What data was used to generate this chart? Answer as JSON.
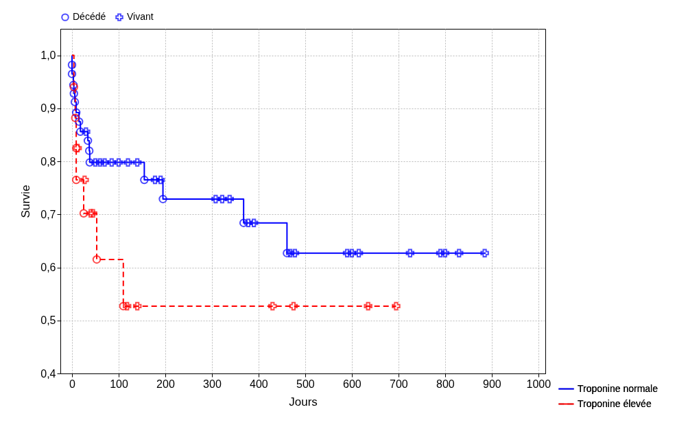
{
  "chart_data": {
    "type": "step",
    "xlabel": "Jours",
    "ylabel": "Survie",
    "grid": true,
    "legend": "bottom right",
    "xlim": [
      -25,
      1015
    ],
    "xticks": [
      0,
      100,
      200,
      300,
      400,
      500,
      600,
      700,
      800,
      900,
      1000
    ],
    "ylim": [
      0.4,
      1.05
    ],
    "yticks": [
      {
        "value": 0.4,
        "label": "0,4"
      },
      {
        "value": 0.5,
        "label": "0,5"
      },
      {
        "value": 0.6,
        "label": "0,6"
      },
      {
        "value": 0.7,
        "label": "0,7"
      },
      {
        "value": 0.8,
        "label": "0,8"
      },
      {
        "value": 0.9,
        "label": "0,9"
      },
      {
        "value": 1.0,
        "label": "1,0"
      }
    ],
    "series": [
      {
        "name": "Troponine normale",
        "color": "#0000ff",
        "line_style": "solid",
        "x": [
          0,
          0,
          0,
          3,
          4,
          6,
          9,
          15,
          18,
          34,
          37,
          38,
          155,
          195,
          368,
          461,
          887
        ],
        "values": [
          1,
          0.982,
          0.965,
          0.944,
          0.928,
          0.912,
          0.892,
          0.875,
          0.856,
          0.839,
          0.82,
          0.798,
          0.765,
          0.729,
          0.684,
          0.627,
          0.627
        ]
      },
      {
        "name": "Troponine élevée",
        "color": "#ff0000",
        "line_style": "dashed",
        "x": [
          0,
          4,
          7,
          9,
          9,
          25,
          53,
          110,
          695
        ],
        "values": [
          1,
          0.94,
          0.882,
          0.825,
          0.765,
          0.702,
          0.615,
          0.527,
          0.527
        ]
      },
      {
        "name": "Décédé",
        "type": "scatter",
        "marker": "circle",
        "x": [
          0,
          0,
          3,
          4,
          6,
          9,
          15,
          18,
          34,
          37,
          38,
          155,
          195,
          368,
          461,
          4,
          7,
          9,
          9,
          25,
          53,
          110
        ],
        "values": [
          0.982,
          0.965,
          0.944,
          0.928,
          0.912,
          0.892,
          0.875,
          0.856,
          0.839,
          0.82,
          0.798,
          0.765,
          0.729,
          0.684,
          0.627,
          0.94,
          0.882,
          0.825,
          0.765,
          0.702,
          0.615,
          0.527
        ],
        "colors": [
          "#0000ff",
          "#0000ff",
          "#0000ff",
          "#0000ff",
          "#0000ff",
          "#0000ff",
          "#0000ff",
          "#0000ff",
          "#0000ff",
          "#0000ff",
          "#0000ff",
          "#0000ff",
          "#0000ff",
          "#0000ff",
          "#0000ff",
          "#ff0000",
          "#ff0000",
          "#ff0000",
          "#ff0000",
          "#ff0000",
          "#ff0000",
          "#ff0000"
        ]
      },
      {
        "name": "Vivant",
        "type": "scatter",
        "marker": "cross",
        "x": [
          30,
          50,
          60,
          70,
          85,
          100,
          120,
          140,
          178,
          190,
          308,
          322,
          338,
          378,
          390,
          468,
          478,
          590,
          600,
          615,
          725,
          790,
          800,
          830,
          885,
          12,
          27,
          40,
          45,
          118,
          140,
          430,
          475,
          635,
          695
        ],
        "values": [
          0.856,
          0.798,
          0.798,
          0.798,
          0.798,
          0.798,
          0.798,
          0.798,
          0.765,
          0.765,
          0.729,
          0.729,
          0.729,
          0.684,
          0.684,
          0.627,
          0.627,
          0.627,
          0.627,
          0.627,
          0.627,
          0.627,
          0.627,
          0.627,
          0.627,
          0.825,
          0.765,
          0.702,
          0.702,
          0.527,
          0.527,
          0.527,
          0.527,
          0.527,
          0.527
        ],
        "colors": [
          "#0000ff",
          "#0000ff",
          "#0000ff",
          "#0000ff",
          "#0000ff",
          "#0000ff",
          "#0000ff",
          "#0000ff",
          "#0000ff",
          "#0000ff",
          "#0000ff",
          "#0000ff",
          "#0000ff",
          "#0000ff",
          "#0000ff",
          "#0000ff",
          "#0000ff",
          "#0000ff",
          "#0000ff",
          "#0000ff",
          "#0000ff",
          "#0000ff",
          "#0000ff",
          "#0000ff",
          "#0000ff",
          "#ff0000",
          "#ff0000",
          "#ff0000",
          "#ff0000",
          "#ff0000",
          "#ff0000",
          "#ff0000",
          "#ff0000",
          "#ff0000",
          "#ff0000"
        ]
      }
    ]
  }
}
